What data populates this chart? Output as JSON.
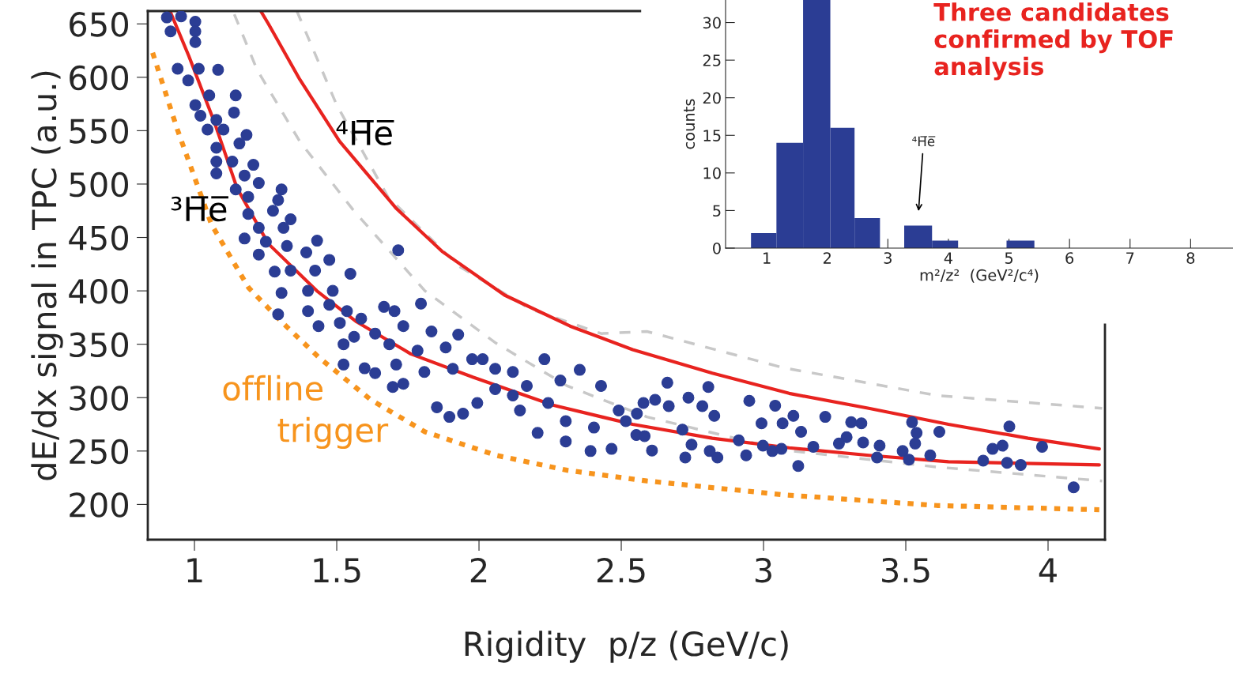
{
  "chart_data": [
    {
      "type": "scatter",
      "xlabel": "Rigidity  p/z (GeV/c)",
      "ylabel": "dE/dx signal in TPC (a.u.)",
      "xlim": [
        0.836,
        4.2
      ],
      "ylim": [
        167,
        662
      ],
      "xticks": [
        1,
        1.5,
        2,
        2.5,
        3,
        3.5,
        4
      ],
      "yticks": [
        200,
        250,
        300,
        350,
        400,
        450,
        500,
        550,
        600,
        650
      ],
      "grid": false,
      "legend": false,
      "series": [
        {
          "type": "scatter",
          "color": "#2b3d94",
          "marker": "circle",
          "x": [
            0.903,
            0.953,
            1.003,
            0.916,
            1.003,
            1.003,
            0.941,
            0.978,
            1.015,
            1.083,
            1.003,
            1.052,
            1.145,
            1.021,
            1.077,
            1.139,
            1.046,
            1.102,
            1.183,
            1.077,
            1.158,
            1.077,
            1.133,
            1.207,
            1.077,
            1.176,
            1.226,
            1.145,
            1.189,
            1.306,
            1.294,
            1.338,
            1.189,
            1.226,
            1.313,
            1.176,
            1.276,
            1.431,
            1.251,
            1.325,
            1.226,
            1.393,
            1.474,
            1.716,
            1.282,
            1.338,
            1.424,
            1.548,
            1.306,
            1.399,
            1.486,
            1.796,
            1.294,
            1.399,
            1.474,
            1.536,
            1.436,
            1.511,
            1.586,
            1.666,
            1.703,
            1.561,
            1.635,
            1.734,
            1.833,
            1.927,
            1.524,
            1.685,
            1.784,
            1.883,
            1.976,
            2.013,
            1.524,
            1.598,
            1.709,
            1.808,
            1.908,
            2.057,
            2.119,
            2.23,
            2.354,
            2.429,
            2.578,
            1.635,
            1.697,
            1.734,
            1.852,
            1.896,
            1.944,
            1.994,
            2.057,
            2.144,
            2.206,
            2.305,
            2.392,
            2.466,
            2.119,
            2.243,
            2.305,
            2.404,
            2.516,
            2.553,
            2.491,
            2.286,
            2.168,
            2.662,
            2.806,
            2.619,
            2.736,
            2.785,
            2.667,
            2.827,
            2.95,
            3.041,
            3.105,
            3.217,
            3.308,
            3.344,
            3.522,
            3.618,
            3.864,
            2.993,
            3.067,
            3.132,
            3.292,
            3.35,
            3.408,
            3.538,
            3.533,
            3.489,
            3.175,
            3.265,
            2.555,
            2.582,
            2.715,
            2.747,
            2.811,
            2.913,
            2.939,
            2.998,
            3.031,
            3.063,
            3.122,
            2.725,
            2.838,
            2.608,
            3.399,
            3.511,
            3.586,
            3.772,
            3.805,
            3.84,
            3.856,
            3.904,
            3.979,
            4.09
          ],
          "values": [
            656,
            657,
            652,
            643,
            643,
            633,
            608,
            597,
            608,
            607,
            574,
            583,
            583,
            564,
            560,
            567,
            551,
            551,
            546,
            534,
            538,
            521,
            521,
            518,
            510,
            508,
            501,
            495,
            488,
            495,
            485,
            467,
            472,
            459,
            459,
            449,
            475,
            447,
            446,
            442,
            434,
            436,
            429,
            438,
            418,
            419,
            419,
            416,
            398,
            400,
            400,
            388,
            378,
            381,
            387,
            381,
            367,
            370,
            374,
            385,
            381,
            357,
            360,
            367,
            362,
            359,
            350,
            350,
            344,
            347,
            336,
            336,
            331,
            327.5,
            331,
            324,
            327,
            327,
            324,
            336,
            326,
            311,
            295,
            323,
            310,
            313,
            291,
            282,
            285,
            295,
            308,
            288,
            267,
            259,
            250,
            252,
            302,
            295,
            278,
            272,
            278,
            265,
            288,
            316,
            311,
            314,
            310,
            298,
            300,
            292,
            292,
            283,
            297,
            292.5,
            283,
            282,
            277,
            276,
            277,
            268,
            273,
            276,
            276,
            268,
            263,
            258,
            255,
            267,
            257,
            250,
            254,
            257,
            285,
            264,
            270,
            256,
            250,
            260,
            246,
            255,
            250,
            252,
            236,
            244,
            244,
            250.5,
            244,
            242,
            246,
            241,
            252,
            255,
            239,
            237,
            254,
            216
          ]
        },
        {
          "type": "line",
          "color": "#c8c8c8",
          "line_style": "dashed",
          "x": [
            1.14,
            1.22,
            1.37,
            1.56,
            1.81,
            2.06,
            2.31,
            2.59,
            3.07,
            3.61,
            4.19
          ],
          "values": [
            659,
            607,
            540,
            475,
            400,
            351,
            311,
            282,
            251,
            235,
            222
          ]
        },
        {
          "type": "line",
          "color": "#c8c8c8",
          "line_style": "dashed",
          "x": [
            1.36,
            1.5,
            1.68,
            1.93,
            2.18,
            2.43,
            2.59,
            3.07,
            3.61,
            4.19
          ],
          "values": [
            662,
            574,
            488,
            423,
            383,
            360,
            362,
            328,
            302,
            290
          ]
        },
        {
          "type": "line",
          "color": "#f7941d",
          "line_style": "dotted",
          "x": [
            0.853,
            0.94,
            1.06,
            1.19,
            1.31,
            1.44,
            1.62,
            1.81,
            2.06,
            2.31,
            2.59,
            3.07,
            3.61,
            4.18
          ],
          "values": [
            623,
            551,
            462,
            403,
            370,
            337,
            298,
            268,
            246,
            232,
            222,
            209,
            199,
            195
          ]
        },
        {
          "type": "line",
          "color": "#e8231f",
          "line_style": "solid",
          "x": [
            0.914,
            0.98,
            1.07,
            1.15,
            1.26,
            1.43,
            1.57,
            1.76,
            1.98,
            2.26,
            2.54,
            2.82,
            3.09,
            3.37,
            3.65,
            4.18
          ],
          "values": [
            662,
            620,
            558,
            496,
            444,
            400,
            371,
            341,
            319,
            293,
            275,
            262,
            253,
            246,
            240,
            237
          ]
        },
        {
          "type": "line",
          "color": "#e8231f",
          "line_style": "solid",
          "x": [
            1.233,
            1.26,
            1.37,
            1.51,
            1.71,
            1.87,
            2.09,
            2.32,
            2.54,
            2.82,
            3.09,
            3.37,
            3.65,
            3.93,
            4.18
          ],
          "values": [
            662,
            650,
            598,
            540,
            477,
            437,
            396,
            367,
            345,
            323,
            304,
            290,
            275,
            262,
            252
          ]
        }
      ],
      "annotations": [
        "⁴H̅e̅",
        "³H̅e̅",
        "offline",
        "trigger"
      ]
    },
    {
      "type": "histogram",
      "xlabel": "m²/z²  (GeV²/c⁴)",
      "ylabel": "counts",
      "color": "#2b3d94",
      "bins": [
        0.74,
        1.16,
        1.6,
        2.05,
        2.45,
        2.87,
        3.27,
        3.73,
        4.16,
        4.96,
        5.42
      ],
      "values": [
        2,
        14,
        33,
        16,
        4,
        0,
        3,
        1,
        0,
        1
      ],
      "xlim": [
        0.32,
        8.7
      ],
      "ylim": [
        0,
        33
      ],
      "xticks": [
        1,
        2,
        3,
        4,
        5,
        6,
        7,
        8
      ],
      "yticks": [
        0,
        5,
        10,
        15,
        20,
        25,
        30
      ],
      "grid": false,
      "annotations": [
        "⁴H̅e̅",
        "Three candidates confirmed by TOF analysis"
      ]
    }
  ]
}
